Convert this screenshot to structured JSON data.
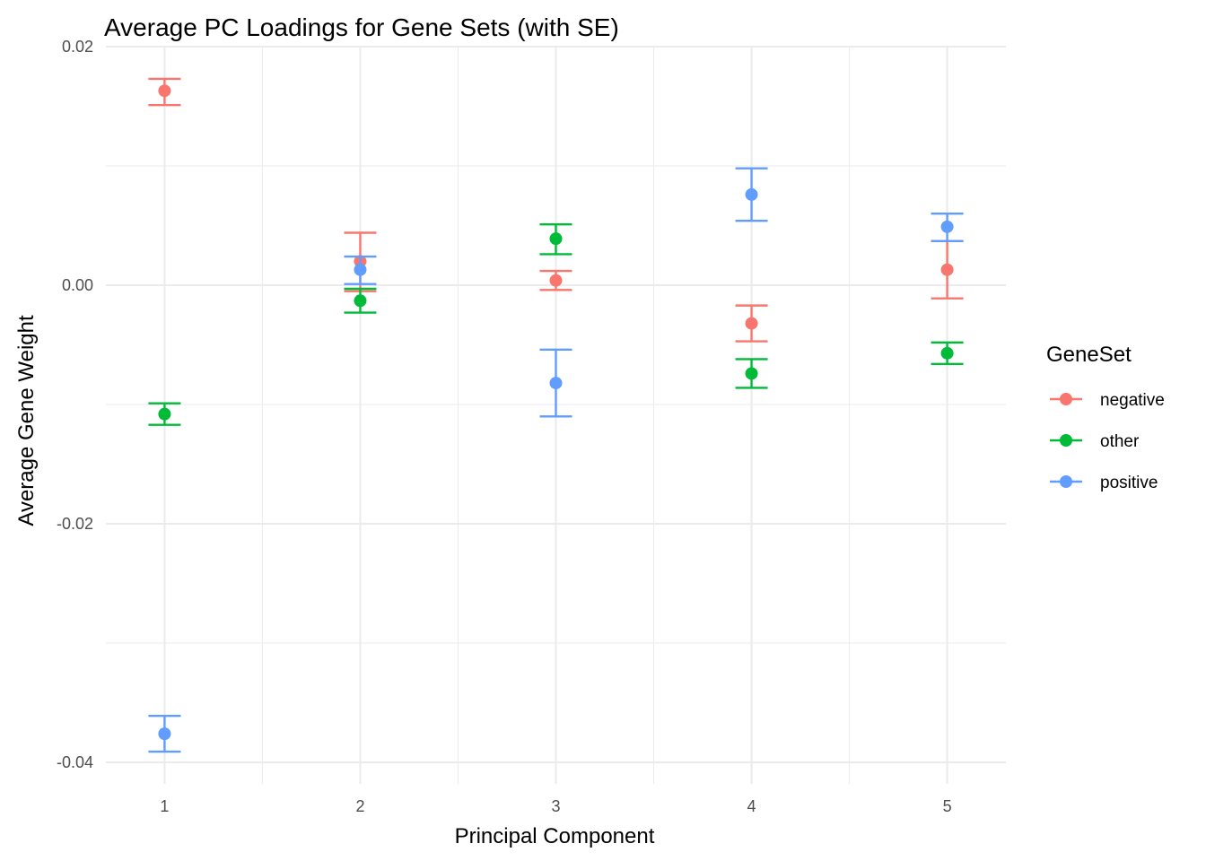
{
  "chart_data": {
    "type": "scatter",
    "title": "Average PC Loadings for Gene Sets (with SE)",
    "xlabel": "Principal Component",
    "ylabel": "Average Gene Weight",
    "x": [
      1,
      2,
      3,
      4,
      5
    ],
    "x_tick_labels": [
      "1",
      "2",
      "3",
      "4",
      "5"
    ],
    "xlim": [
      0.7,
      5.3
    ],
    "ylim": [
      -0.0418,
      0.02
    ],
    "y_ticks": [
      -0.04,
      -0.02,
      0.0,
      0.02
    ],
    "y_tick_labels": [
      "-0.04",
      "-0.02",
      "0.00",
      "0.02"
    ],
    "grid": true,
    "legend": {
      "title": "GeneSet",
      "position": "right"
    },
    "series": [
      {
        "name": "negative",
        "color": "#F8766D",
        "values": [
          0.0163,
          0.002,
          0.0004,
          -0.0032,
          0.0013
        ],
        "lower": [
          0.0151,
          -0.0005,
          -0.0004,
          -0.0047,
          -0.0011
        ],
        "upper": [
          0.0173,
          0.0044,
          0.0012,
          -0.0017,
          0.0037
        ]
      },
      {
        "name": "other",
        "color": "#00BA38",
        "values": [
          -0.0108,
          -0.0013,
          0.0039,
          -0.0074,
          -0.0057
        ],
        "lower": [
          -0.0117,
          -0.0023,
          0.0026,
          -0.0086,
          -0.0066
        ],
        "upper": [
          -0.0099,
          -0.0003,
          0.0051,
          -0.0062,
          -0.0048
        ]
      },
      {
        "name": "positive",
        "color": "#619CFF",
        "values": [
          -0.0376,
          0.0013,
          -0.0082,
          0.0076,
          0.0049
        ],
        "lower": [
          -0.0391,
          0.0001,
          -0.011,
          0.0054,
          0.0037
        ],
        "upper": [
          -0.0361,
          0.0024,
          -0.0054,
          0.0098,
          0.006
        ]
      }
    ]
  }
}
